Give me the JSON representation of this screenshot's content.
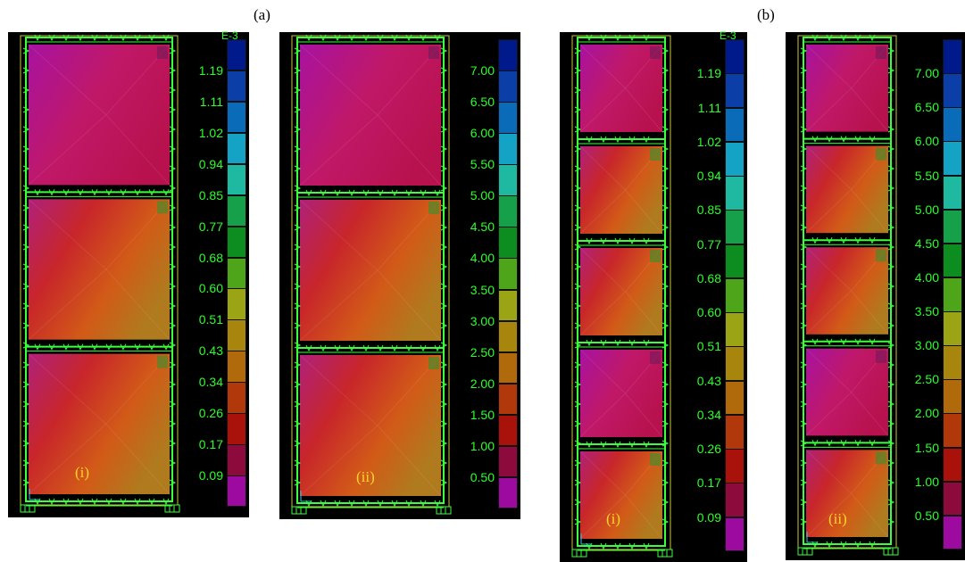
{
  "labels": {
    "group_a": "(a)",
    "group_b": "(b)"
  },
  "panels": [
    {
      "id": "a-i",
      "case": "(i)",
      "unit": "E-3",
      "ticks": [
        "1.19",
        "1.11",
        "1.02",
        "0.94",
        "0.85",
        "0.77",
        "0.68",
        "0.60",
        "0.51",
        "0.43",
        "0.34",
        "0.26",
        "0.17",
        "0.09"
      ]
    },
    {
      "id": "a-ii",
      "case": "(ii)",
      "unit": "",
      "ticks": [
        "7.00",
        "6.50",
        "6.00",
        "5.50",
        "5.00",
        "4.50",
        "4.00",
        "3.50",
        "3.00",
        "2.50",
        "2.00",
        "1.50",
        "1.00",
        "0.50"
      ]
    },
    {
      "id": "b-i",
      "case": "(i)",
      "unit": "E-3",
      "ticks": [
        "1.19",
        "1.11",
        "1.02",
        "0.94",
        "0.85",
        "0.77",
        "0.68",
        "0.60",
        "0.51",
        "0.43",
        "0.34",
        "0.26",
        "0.17",
        "0.09"
      ]
    },
    {
      "id": "b-ii",
      "case": "(ii)",
      "unit": "",
      "ticks": [
        "7.00",
        "6.50",
        "6.00",
        "5.50",
        "5.00",
        "4.50",
        "4.00",
        "3.50",
        "3.00",
        "2.50",
        "2.00",
        "1.50",
        "1.00",
        "0.50"
      ]
    }
  ],
  "colors": {
    "scale": [
      "#001a8c",
      "#0b3ea6",
      "#0a6cb8",
      "#14a3c4",
      "#1fb8a0",
      "#17a04a",
      "#0d8c1f",
      "#4ea51a",
      "#9aa414",
      "#a8860e",
      "#b06a0c",
      "#b0380a",
      "#a8120a",
      "#8c0a3c",
      "#9c0aa0"
    ],
    "frame": "#3cff3c",
    "case_label": "#ffd52a",
    "tick_text": "#2bff2b"
  }
}
